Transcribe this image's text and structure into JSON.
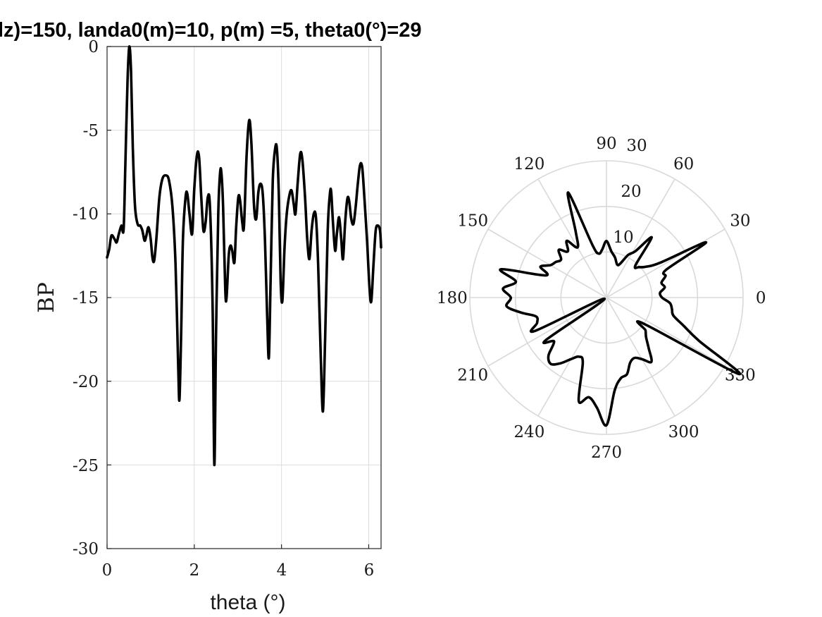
{
  "title": "lz)=150, landa0(m)=10, p(m) =5, theta0(°)=29",
  "chart_data": [
    {
      "type": "line",
      "xlabel": "theta (°)",
      "ylabel": "BP",
      "xlim": [
        0,
        6.2832
      ],
      "ylim": [
        -30,
        0
      ],
      "xticks": [
        "0",
        "2",
        "4",
        "6"
      ],
      "yticks": [
        "0",
        "-5",
        "-10",
        "-15",
        "-20",
        "-25",
        "-30"
      ],
      "grid": true,
      "color": "#000000",
      "series": [
        {
          "points": [
            [
              0.0,
              -12.6
            ],
            [
              0.05,
              -12.1
            ],
            [
              0.1,
              -11.3
            ],
            [
              0.17,
              -11.5
            ],
            [
              0.22,
              -11.7
            ],
            [
              0.27,
              -11.2
            ],
            [
              0.33,
              -10.7
            ],
            [
              0.38,
              -10.9
            ],
            [
              0.42,
              -7.0
            ],
            [
              0.47,
              -2.0
            ],
            [
              0.51,
              0.0
            ],
            [
              0.55,
              -1.5
            ],
            [
              0.59,
              -6.0
            ],
            [
              0.64,
              -9.5
            ],
            [
              0.7,
              -10.6
            ],
            [
              0.76,
              -10.7
            ],
            [
              0.81,
              -11.0
            ],
            [
              0.86,
              -11.6
            ],
            [
              0.9,
              -11.3
            ],
            [
              0.95,
              -10.8
            ],
            [
              1.0,
              -11.5
            ],
            [
              1.04,
              -12.6
            ],
            [
              1.08,
              -12.8
            ],
            [
              1.13,
              -11.5
            ],
            [
              1.2,
              -9.0
            ],
            [
              1.27,
              -7.9
            ],
            [
              1.35,
              -7.7
            ],
            [
              1.42,
              -8.0
            ],
            [
              1.5,
              -9.6
            ],
            [
              1.57,
              -13.0
            ],
            [
              1.63,
              -19.0
            ],
            [
              1.66,
              -21.1
            ],
            [
              1.7,
              -17.0
            ],
            [
              1.74,
              -11.5
            ],
            [
              1.8,
              -9.0
            ],
            [
              1.84,
              -8.8
            ],
            [
              1.89,
              -10.0
            ],
            [
              1.95,
              -11.2
            ],
            [
              2.0,
              -8.5
            ],
            [
              2.06,
              -6.5
            ],
            [
              2.11,
              -6.6
            ],
            [
              2.16,
              -9.0
            ],
            [
              2.21,
              -11.0
            ],
            [
              2.26,
              -10.5
            ],
            [
              2.31,
              -9.0
            ],
            [
              2.36,
              -9.6
            ],
            [
              2.42,
              -15.5
            ],
            [
              2.46,
              -25.0
            ],
            [
              2.5,
              -17.0
            ],
            [
              2.55,
              -10.0
            ],
            [
              2.59,
              -7.6
            ],
            [
              2.62,
              -7.5
            ],
            [
              2.66,
              -9.5
            ],
            [
              2.71,
              -14.5
            ],
            [
              2.74,
              -15.0
            ],
            [
              2.79,
              -12.5
            ],
            [
              2.83,
              -11.9
            ],
            [
              2.87,
              -12.2
            ],
            [
              2.92,
              -12.9
            ],
            [
              2.96,
              -10.8
            ],
            [
              3.01,
              -9.0
            ],
            [
              3.05,
              -9.2
            ],
            [
              3.1,
              -10.5
            ],
            [
              3.14,
              -10.7
            ],
            [
              3.2,
              -6.5
            ],
            [
              3.26,
              -4.4
            ],
            [
              3.31,
              -5.8
            ],
            [
              3.37,
              -9.5
            ],
            [
              3.42,
              -10.3
            ],
            [
              3.47,
              -8.7
            ],
            [
              3.52,
              -8.2
            ],
            [
              3.57,
              -8.8
            ],
            [
              3.62,
              -11.5
            ],
            [
              3.67,
              -16.0
            ],
            [
              3.71,
              -18.6
            ],
            [
              3.75,
              -14.0
            ],
            [
              3.8,
              -8.0
            ],
            [
              3.86,
              -6.0
            ],
            [
              3.9,
              -6.3
            ],
            [
              3.94,
              -9.0
            ],
            [
              3.98,
              -14.0
            ],
            [
              4.02,
              -15.2
            ],
            [
              4.07,
              -12.0
            ],
            [
              4.12,
              -10.0
            ],
            [
              4.18,
              -8.9
            ],
            [
              4.23,
              -8.6
            ],
            [
              4.28,
              -9.4
            ],
            [
              4.32,
              -10.0
            ],
            [
              4.37,
              -8.2
            ],
            [
              4.43,
              -6.4
            ],
            [
              4.48,
              -6.8
            ],
            [
              4.54,
              -9.0
            ],
            [
              4.59,
              -11.5
            ],
            [
              4.64,
              -12.7
            ],
            [
              4.69,
              -11.0
            ],
            [
              4.74,
              -10.0
            ],
            [
              4.79,
              -10.2
            ],
            [
              4.84,
              -13.0
            ],
            [
              4.9,
              -18.5
            ],
            [
              4.95,
              -21.8
            ],
            [
              5.0,
              -17.5
            ],
            [
              5.06,
              -11.0
            ],
            [
              5.11,
              -8.8
            ],
            [
              5.14,
              -8.7
            ],
            [
              5.18,
              -10.5
            ],
            [
              5.23,
              -12.2
            ],
            [
              5.27,
              -11.2
            ],
            [
              5.32,
              -10.2
            ],
            [
              5.37,
              -11.5
            ],
            [
              5.41,
              -12.7
            ],
            [
              5.46,
              -10.5
            ],
            [
              5.51,
              -9.1
            ],
            [
              5.55,
              -9.2
            ],
            [
              5.6,
              -10.3
            ],
            [
              5.65,
              -10.6
            ],
            [
              5.7,
              -9.6
            ],
            [
              5.75,
              -8.2
            ],
            [
              5.8,
              -7.1
            ],
            [
              5.85,
              -7.2
            ],
            [
              5.9,
              -9.0
            ],
            [
              5.96,
              -11.5
            ],
            [
              6.02,
              -14.5
            ],
            [
              6.06,
              -15.2
            ],
            [
              6.11,
              -13.0
            ],
            [
              6.16,
              -11.0
            ],
            [
              6.21,
              -10.7
            ],
            [
              6.26,
              -11.0
            ],
            [
              6.2832,
              -12.0
            ]
          ]
        }
      ]
    },
    {
      "type": "polar-line",
      "angle_unit": "degrees",
      "rlim": [
        0,
        30
      ],
      "rticks": [
        "10",
        "20",
        "30"
      ],
      "angle_ticks": [
        "0",
        "30",
        "60",
        "90",
        "120",
        "150",
        "180",
        "210",
        "240",
        "270",
        "300",
        "330"
      ],
      "color": "#000000",
      "series": [
        {
          "points": [
            [
              0,
              12.2
            ],
            [
              5,
              11.8
            ],
            [
              10,
              13.0
            ],
            [
              15,
              12.5
            ],
            [
              20,
              13.8
            ],
            [
              25,
              14.5
            ],
            [
              29,
              25.0
            ],
            [
              33,
              14.0
            ],
            [
              38,
              11.0
            ],
            [
              43,
              9.8
            ],
            [
              48,
              9.5
            ],
            [
              53,
              16.5
            ],
            [
              58,
              12.0
            ],
            [
              63,
              10.5
            ],
            [
              68,
              8.0
            ],
            [
              72,
              7.6
            ],
            [
              78,
              9.0
            ],
            [
              84,
              10.2
            ],
            [
              90,
              12.4
            ],
            [
              95,
              10.6
            ],
            [
              100,
              9.8
            ],
            [
              105,
              12.0
            ],
            [
              110,
              24.5
            ],
            [
              115,
              16.0
            ],
            [
              120,
              12.7
            ],
            [
              125,
              15.2
            ],
            [
              130,
              13.2
            ],
            [
              135,
              14.8
            ],
            [
              140,
              13.0
            ],
            [
              145,
              13.6
            ],
            [
              150,
              14.2
            ],
            [
              155,
              16.0
            ],
            [
              160,
              14.2
            ],
            [
              165,
              24.0
            ],
            [
              170,
              20.2
            ],
            [
              175,
              22.8
            ],
            [
              180,
              21.0
            ],
            [
              185,
              22.0
            ],
            [
              190,
              19.0
            ],
            [
              195,
              16.0
            ],
            [
              200,
              16.2
            ],
            [
              205,
              17.2
            ],
            [
              210,
              0.5
            ],
            [
              215,
              16.2
            ],
            [
              220,
              15.0
            ],
            [
              225,
              18.0
            ],
            [
              230,
              19.0
            ],
            [
              235,
              17.6
            ],
            [
              240,
              15.6
            ],
            [
              245,
              14.3
            ],
            [
              250,
              15.2
            ],
            [
              255,
              23.5
            ],
            [
              260,
              22.2
            ],
            [
              265,
              24.2
            ],
            [
              270,
              28.0
            ],
            [
              275,
              20.5
            ],
            [
              280,
              18.0
            ],
            [
              285,
              17.4
            ],
            [
              290,
              15.2
            ],
            [
              295,
              14.6
            ],
            [
              300,
              15.6
            ],
            [
              305,
              17.2
            ],
            [
              310,
              14.4
            ],
            [
              315,
              12.3
            ],
            [
              320,
              11.2
            ],
            [
              325,
              10.0
            ],
            [
              330,
              33.5
            ],
            [
              335,
              22.4
            ],
            [
              340,
              18.0
            ],
            [
              345,
              15.2
            ],
            [
              350,
              14.6
            ],
            [
              355,
              14.0
            ],
            [
              360,
              12.2
            ]
          ]
        }
      ]
    }
  ]
}
